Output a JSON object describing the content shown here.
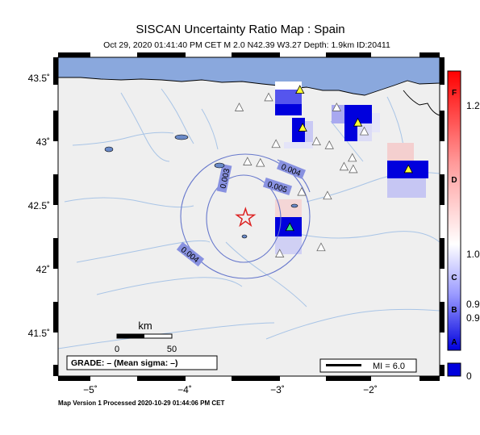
{
  "title": "SISCAN Uncertainty Ratio Map : Spain",
  "subtitle": "Oct 29, 2020 01:41:40 PM CET   M 2.0   N42.39 W3.27   Depth: 1.9km   ID:20411",
  "footer": "Map Version 1 Processed 2020-10-29 01:44:06 PM CET",
  "grade_box": "GRADE: – (Mean sigma: –)",
  "mi_legend": "MI = 6.0",
  "scale_bar": {
    "unit": "km",
    "start": "0",
    "end": "50"
  },
  "axes": {
    "lon_labels": [
      {
        "value": -5,
        "label": "−5˚"
      },
      {
        "value": -4,
        "label": "−4˚"
      },
      {
        "value": -3,
        "label": "−3˚"
      },
      {
        "value": -2,
        "label": "−2˚"
      }
    ],
    "lat_labels": [
      {
        "value": 43.5,
        "label": "43.5˚"
      },
      {
        "value": 43,
        "label": "43˚"
      },
      {
        "value": 42.5,
        "label": "42.5˚"
      },
      {
        "value": 42,
        "label": "42˚"
      },
      {
        "value": 41.5,
        "label": "41.5˚"
      }
    ],
    "lon_range": [
      -5.4,
      -1.25
    ],
    "lat_range": [
      41.15,
      43.68
    ]
  },
  "epicenter": {
    "lat": 42.39,
    "lon": -3.27,
    "marker": "star-icon",
    "color": "#dd2222"
  },
  "contours": [
    {
      "label": "0.003"
    },
    {
      "label": "0.004"
    },
    {
      "label": "0.005"
    },
    {
      "label": "0.004"
    }
  ],
  "colorbar": {
    "letters": [
      "F",
      "D",
      "C",
      "B",
      "A"
    ],
    "values": [
      "1.2",
      "1.0",
      "0.9",
      "0.9",
      "0"
    ],
    "top_color": "#ff0000",
    "bottom_color": "#0000dd"
  },
  "stations": [
    {
      "lat": 43.42,
      "lon": -2.77,
      "status": "active"
    },
    {
      "lat": 43.16,
      "lon": -2.14,
      "status": "active"
    },
    {
      "lat": 43.12,
      "lon": -2.74,
      "status": "active"
    },
    {
      "lat": 42.79,
      "lon": -1.59,
      "status": "active"
    },
    {
      "lat": 42.33,
      "lon": -2.88,
      "status": "highlight"
    },
    {
      "lat": 43.28,
      "lon": -3.43,
      "status": "inactive"
    },
    {
      "lat": 43.36,
      "lon": -3.11,
      "status": "inactive"
    },
    {
      "lat": 43.28,
      "lon": -2.37,
      "status": "inactive"
    },
    {
      "lat": 43.09,
      "lon": -2.07,
      "status": "inactive"
    },
    {
      "lat": 43.01,
      "lon": -2.59,
      "status": "inactive"
    },
    {
      "lat": 42.99,
      "lon": -3.03,
      "status": "inactive"
    },
    {
      "lat": 42.98,
      "lon": -2.45,
      "status": "inactive"
    },
    {
      "lat": 42.88,
      "lon": -2.2,
      "status": "inactive"
    },
    {
      "lat": 42.81,
      "lon": -2.29,
      "status": "inactive"
    },
    {
      "lat": 42.79,
      "lon": -2.19,
      "status": "inactive"
    },
    {
      "lat": 42.85,
      "lon": -3.34,
      "status": "inactive"
    },
    {
      "lat": 42.84,
      "lon": -3.2,
      "status": "inactive"
    },
    {
      "lat": 42.61,
      "lon": -2.75,
      "status": "inactive"
    },
    {
      "lat": 42.58,
      "lon": -2.47,
      "status": "inactive"
    },
    {
      "lat": 42.17,
      "lon": -2.54,
      "status": "inactive"
    },
    {
      "lat": 42.12,
      "lon": -2.99,
      "status": "inactive"
    }
  ],
  "colors": {
    "land": "#efefef",
    "sea": "#8aa8dd",
    "river": "#a8c4e6",
    "contour": "#6677cc",
    "high_cell": "#0000dd",
    "inactive_station": "#ffffff"
  }
}
